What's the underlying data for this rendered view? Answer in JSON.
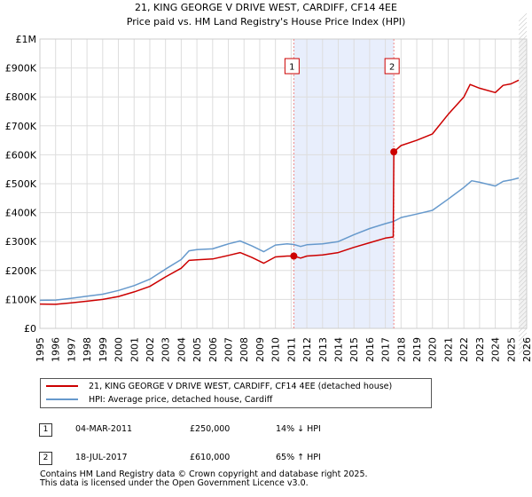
{
  "chart_data": {
    "type": "line",
    "title": "21, KING GEORGE V DRIVE WEST, CARDIFF, CF14 4EE",
    "subtitle": "Price paid vs. HM Land Registry's House Price Index (HPI)",
    "xlim": [
      1995,
      2026
    ],
    "ylim": [
      0,
      1000000
    ],
    "y_ticks": [
      {
        "value": 0,
        "label": "£0"
      },
      {
        "value": 100000,
        "label": "£100K"
      },
      {
        "value": 200000,
        "label": "£200K"
      },
      {
        "value": 300000,
        "label": "£300K"
      },
      {
        "value": 400000,
        "label": "£400K"
      },
      {
        "value": 500000,
        "label": "£500K"
      },
      {
        "value": 600000,
        "label": "£600K"
      },
      {
        "value": 700000,
        "label": "£700K"
      },
      {
        "value": 800000,
        "label": "£800K"
      },
      {
        "value": 900000,
        "label": "£900K"
      },
      {
        "value": 1000000,
        "label": "£1M"
      }
    ],
    "x_ticks": [
      "1995",
      "1996",
      "1997",
      "1998",
      "1999",
      "2000",
      "2001",
      "2002",
      "2003",
      "2004",
      "2005",
      "2006",
      "2007",
      "2008",
      "2009",
      "2010",
      "2011",
      "2012",
      "2013",
      "2014",
      "2015",
      "2016",
      "2017",
      "2018",
      "2019",
      "2020",
      "2021",
      "2022",
      "2023",
      "2024",
      "2025",
      "2026"
    ],
    "grid": true,
    "shaded_region": [
      2011.17,
      2017.54
    ],
    "series": [
      {
        "name": "21, KING GEORGE V DRIVE WEST, CARDIFF, CF14 4EE (detached house)",
        "color": "#cc0000",
        "points": [
          [
            1995.0,
            84000
          ],
          [
            1996.0,
            83000
          ],
          [
            1997.0,
            88000
          ],
          [
            1998.0,
            94000
          ],
          [
            1999.0,
            100000
          ],
          [
            2000.0,
            110000
          ],
          [
            2001.0,
            126000
          ],
          [
            2002.0,
            145000
          ],
          [
            2003.0,
            178000
          ],
          [
            2004.0,
            208000
          ],
          [
            2004.5,
            235000
          ],
          [
            2005.0,
            237000
          ],
          [
            2006.0,
            240000
          ],
          [
            2007.0,
            252000
          ],
          [
            2007.75,
            262000
          ],
          [
            2008.5,
            245000
          ],
          [
            2009.25,
            225000
          ],
          [
            2010.0,
            247000
          ],
          [
            2010.75,
            250000
          ],
          [
            2011.17,
            250000
          ],
          [
            2011.6,
            243000
          ],
          [
            2012.0,
            250000
          ],
          [
            2013.0,
            254000
          ],
          [
            2014.0,
            262000
          ],
          [
            2015.0,
            280000
          ],
          [
            2016.0,
            296000
          ],
          [
            2017.0,
            312000
          ],
          [
            2017.5,
            316000
          ],
          [
            2017.54,
            610000
          ],
          [
            2018.0,
            632000
          ],
          [
            2019.0,
            650000
          ],
          [
            2020.0,
            672000
          ],
          [
            2021.0,
            740000
          ],
          [
            2022.0,
            800000
          ],
          [
            2022.4,
            843000
          ],
          [
            2023.0,
            830000
          ],
          [
            2024.0,
            815000
          ],
          [
            2024.5,
            840000
          ],
          [
            2025.0,
            845000
          ],
          [
            2025.5,
            858000
          ]
        ]
      },
      {
        "name": "HPI: Average price, detached house, Cardiff",
        "color": "#6699cc",
        "points": [
          [
            1995.0,
            97000
          ],
          [
            1996.0,
            98000
          ],
          [
            1997.0,
            104000
          ],
          [
            1998.0,
            111000
          ],
          [
            1999.0,
            118000
          ],
          [
            2000.0,
            131000
          ],
          [
            2001.0,
            148000
          ],
          [
            2002.0,
            170000
          ],
          [
            2003.0,
            205000
          ],
          [
            2004.0,
            238000
          ],
          [
            2004.5,
            268000
          ],
          [
            2005.0,
            272000
          ],
          [
            2006.0,
            275000
          ],
          [
            2007.0,
            292000
          ],
          [
            2007.75,
            302000
          ],
          [
            2008.5,
            285000
          ],
          [
            2009.25,
            265000
          ],
          [
            2010.0,
            288000
          ],
          [
            2010.75,
            292000
          ],
          [
            2011.17,
            290000
          ],
          [
            2011.6,
            283000
          ],
          [
            2012.0,
            289000
          ],
          [
            2013.0,
            292000
          ],
          [
            2014.0,
            300000
          ],
          [
            2015.0,
            324000
          ],
          [
            2016.0,
            345000
          ],
          [
            2017.0,
            362000
          ],
          [
            2017.54,
            370000
          ],
          [
            2018.0,
            383000
          ],
          [
            2019.0,
            395000
          ],
          [
            2020.0,
            408000
          ],
          [
            2021.0,
            447000
          ],
          [
            2022.0,
            487000
          ],
          [
            2022.5,
            510000
          ],
          [
            2023.0,
            505000
          ],
          [
            2024.0,
            492000
          ],
          [
            2024.5,
            508000
          ],
          [
            2025.0,
            513000
          ],
          [
            2025.5,
            520000
          ]
        ]
      }
    ],
    "sales": [
      {
        "marker": "1",
        "x": 2011.17,
        "y": 250000
      },
      {
        "marker": "2",
        "x": 2017.54,
        "y": 610000
      }
    ]
  },
  "legend": {
    "property_label": "21, KING GEORGE V DRIVE WEST, CARDIFF, CF14 4EE (detached house)",
    "hpi_label": "HPI: Average price, detached house, Cardiff"
  },
  "sales_table": [
    {
      "marker": "1",
      "date": "04-MAR-2011",
      "price": "£250,000",
      "hpi": "14% ↓ HPI"
    },
    {
      "marker": "2",
      "date": "18-JUL-2017",
      "price": "£610,000",
      "hpi": "65% ↑ HPI"
    }
  ],
  "footer": {
    "line1": "Contains HM Land Registry data © Crown copyright and database right 2025.",
    "line2": "This data is licensed under the Open Government Licence v3.0."
  }
}
